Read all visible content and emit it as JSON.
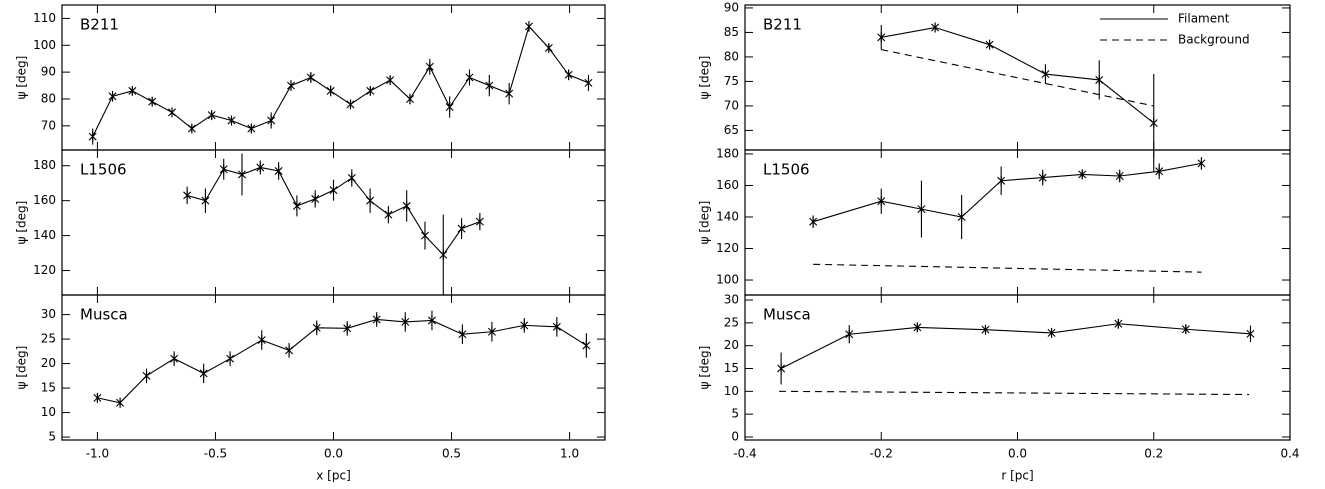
{
  "chart_data": [
    {
      "type": "line",
      "title": "B211",
      "ylabel": "ψ [deg]",
      "xlim": [
        -1.15,
        1.15
      ],
      "ylim": [
        61,
        115
      ],
      "yticks": [
        70,
        80,
        90,
        100,
        110
      ],
      "series": [
        {
          "color": "#000000",
          "style": "solid",
          "marker": "asterisk",
          "x": [
            -1.02,
            -0.936,
            -0.852,
            -0.768,
            -0.684,
            -0.6,
            -0.516,
            -0.432,
            -0.348,
            -0.264,
            -0.18,
            -0.096,
            -0.012,
            0.072,
            0.156,
            0.24,
            0.324,
            0.408,
            0.492,
            0.576,
            0.66,
            0.744,
            0.828,
            0.912,
            0.996,
            1.08
          ],
          "values": [
            66,
            81,
            83,
            79,
            75,
            69,
            74,
            72,
            69,
            72,
            85,
            88,
            83,
            78,
            83,
            87,
            80,
            92,
            77,
            88,
            85,
            82,
            107,
            99,
            89,
            86
          ],
          "errors": [
            3,
            2,
            1.5,
            1.5,
            1.5,
            1.5,
            1.5,
            1.5,
            1.5,
            3,
            2,
            2,
            2,
            1.5,
            1.5,
            1.5,
            2,
            3,
            4,
            3,
            4,
            4,
            2,
            1.5,
            2,
            3
          ]
        }
      ]
    },
    {
      "type": "line",
      "title": "L1506",
      "ylabel": "ψ [deg]",
      "xlim": [
        -1.15,
        1.15
      ],
      "ylim": [
        106,
        189
      ],
      "yticks": [
        120,
        140,
        160,
        180
      ],
      "series": [
        {
          "color": "#000000",
          "style": "solid",
          "marker": "asterisk",
          "x": [
            -0.62,
            -0.5425,
            -0.465,
            -0.3875,
            -0.31,
            -0.2325,
            -0.155,
            -0.0775,
            0.0,
            0.0775,
            0.155,
            0.2325,
            0.31,
            0.3875,
            0.465,
            0.5425,
            0.62
          ],
          "values": [
            163,
            160,
            178,
            175,
            179,
            177,
            157,
            161,
            166,
            173,
            160,
            152,
            157,
            140,
            129,
            144,
            148
          ],
          "errors": [
            5,
            7,
            6,
            12,
            4,
            5,
            6,
            5,
            6,
            5,
            7,
            5,
            9,
            8,
            23,
            6,
            5
          ]
        }
      ]
    },
    {
      "type": "line",
      "title": "Musca",
      "ylabel": "ψ [deg]",
      "xlabel": "x [pc]",
      "xlim": [
        -1.15,
        1.15
      ],
      "ylim": [
        4.4,
        34
      ],
      "yticks": [
        5,
        10,
        15,
        20,
        25,
        30
      ],
      "xticks": [
        {
          "value": -1.0,
          "label": "-1.0"
        },
        -0.5,
        {
          "value": 0.0,
          "label": "0.0"
        },
        0.5,
        {
          "value": 1.0,
          "label": "1.0"
        }
      ],
      "series": [
        {
          "color": "#000000",
          "style": "solid",
          "marker": "asterisk",
          "x": [
            -1.0,
            -0.904,
            -0.792,
            -0.675,
            -0.55,
            -0.438,
            -0.304,
            -0.188,
            -0.071,
            0.058,
            0.183,
            0.304,
            0.417,
            0.546,
            0.671,
            0.808,
            0.946,
            1.071
          ],
          "values": [
            13,
            12,
            17.5,
            21,
            18,
            21,
            24.8,
            22.7,
            27.3,
            27.2,
            29,
            28.5,
            28.8,
            26,
            26.5,
            27.8,
            27.5,
            23.7
          ],
          "errors": [
            1,
            1,
            1.5,
            1.5,
            2,
            1.5,
            2,
            1.5,
            1.5,
            1.5,
            1.5,
            2,
            2,
            2,
            2,
            1.5,
            2,
            2.5
          ]
        }
      ]
    },
    {
      "type": "line",
      "title": "B211",
      "ylabel": "ψ [deg]",
      "xlim": [
        -0.4,
        0.4
      ],
      "ylim": [
        61,
        90.6
      ],
      "yticks": [
        65,
        70,
        75,
        80,
        85,
        90
      ],
      "legend": "upper right",
      "series": [
        {
          "name": "Filament",
          "color": "#000000",
          "style": "solid",
          "marker": "asterisk",
          "x": [
            -0.2,
            -0.121,
            -0.041,
            0.041,
            0.12,
            0.2
          ],
          "values": [
            84,
            86,
            82.5,
            76.5,
            75.3,
            66.5
          ],
          "errors": [
            2.5,
            1,
            1,
            2,
            4,
            10
          ]
        },
        {
          "name": "Background",
          "color": "#000000",
          "style": "dashed",
          "x": [
            -0.2,
            0.2
          ],
          "values": [
            81.5,
            70
          ]
        }
      ]
    },
    {
      "type": "line",
      "title": "L1506",
      "ylabel": "ψ [deg]",
      "xlim": [
        -0.4,
        0.4
      ],
      "ylim": [
        90.5,
        182.5
      ],
      "yticks": [
        100,
        120,
        140,
        160,
        180
      ],
      "series": [
        {
          "color": "#000000",
          "style": "solid",
          "marker": "asterisk",
          "x": [
            -0.3,
            -0.2,
            -0.141,
            -0.082,
            -0.024,
            0.037,
            0.095,
            0.15,
            0.208,
            0.27
          ],
          "values": [
            137,
            150,
            145,
            140,
            163,
            165,
            167,
            166,
            169,
            174
          ],
          "errors": [
            4,
            8,
            18,
            14,
            9,
            5,
            3,
            4,
            5,
            4
          ]
        },
        {
          "color": "#000000",
          "style": "dashed",
          "x": [
            -0.3,
            0.27
          ],
          "values": [
            110,
            105
          ]
        }
      ]
    },
    {
      "type": "line",
      "title": "Musca",
      "ylabel": "ψ [deg]",
      "xlabel": "r [pc]",
      "xlim": [
        -0.4,
        0.4
      ],
      "ylim": [
        -0.66,
        31.1
      ],
      "yticks": [
        0,
        5,
        10,
        15,
        20,
        25,
        30
      ],
      "xticks": [
        -0.4,
        -0.2,
        {
          "value": 0.0,
          "label": "0.0"
        },
        0.2,
        0.4
      ],
      "series": [
        {
          "color": "#000000",
          "style": "solid",
          "marker": "asterisk",
          "x": [
            -0.347,
            -0.247,
            -0.147,
            -0.047,
            0.05,
            0.148,
            0.247,
            0.342
          ],
          "values": [
            15,
            22.5,
            24,
            23.5,
            22.8,
            24.8,
            23.6,
            22.6
          ],
          "errors": [
            3.5,
            2,
            1,
            1,
            1,
            1,
            1,
            1.8
          ]
        },
        {
          "color": "#000000",
          "style": "dashed",
          "x": [
            -0.35,
            0.34
          ],
          "values": [
            10,
            9.3
          ]
        }
      ]
    }
  ]
}
